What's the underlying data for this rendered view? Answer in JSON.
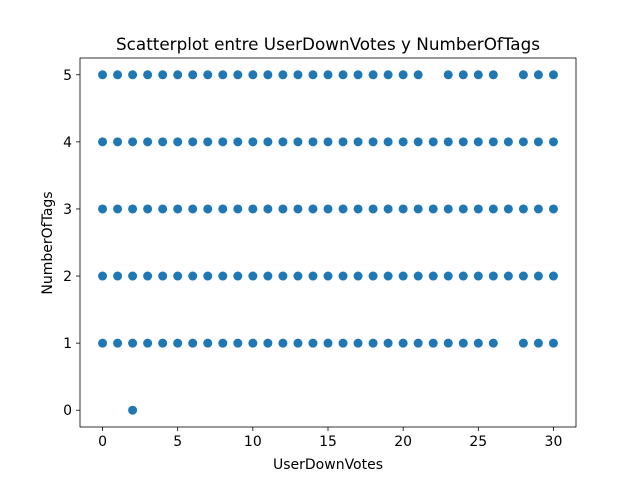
{
  "chart_data": {
    "type": "scatter",
    "title": "Scatterplot entre UserDownVotes y NumberOfTags",
    "xlabel": "UserDownVotes",
    "ylabel": "NumberOfTags",
    "xlim": [
      -1.5,
      31.5
    ],
    "ylim": [
      -0.25,
      5.25
    ],
    "x_ticks": [
      "0",
      "5",
      "10",
      "15",
      "20",
      "25",
      "30"
    ],
    "y_ticks": [
      "0",
      "1",
      "2",
      "3",
      "4",
      "5"
    ],
    "grid": false,
    "legend": "none",
    "marker_color": "#1f77b4",
    "series": [
      {
        "points": [
          [
            2,
            0
          ],
          [
            0,
            1
          ],
          [
            1,
            1
          ],
          [
            2,
            1
          ],
          [
            3,
            1
          ],
          [
            4,
            1
          ],
          [
            5,
            1
          ],
          [
            6,
            1
          ],
          [
            7,
            1
          ],
          [
            8,
            1
          ],
          [
            9,
            1
          ],
          [
            10,
            1
          ],
          [
            11,
            1
          ],
          [
            12,
            1
          ],
          [
            13,
            1
          ],
          [
            14,
            1
          ],
          [
            15,
            1
          ],
          [
            16,
            1
          ],
          [
            17,
            1
          ],
          [
            18,
            1
          ],
          [
            19,
            1
          ],
          [
            20,
            1
          ],
          [
            21,
            1
          ],
          [
            22,
            1
          ],
          [
            23,
            1
          ],
          [
            24,
            1
          ],
          [
            25,
            1
          ],
          [
            26,
            1
          ],
          [
            28,
            1
          ],
          [
            29,
            1
          ],
          [
            30,
            1
          ],
          [
            0,
            2
          ],
          [
            1,
            2
          ],
          [
            2,
            2
          ],
          [
            3,
            2
          ],
          [
            4,
            2
          ],
          [
            5,
            2
          ],
          [
            6,
            2
          ],
          [
            7,
            2
          ],
          [
            8,
            2
          ],
          [
            9,
            2
          ],
          [
            10,
            2
          ],
          [
            11,
            2
          ],
          [
            12,
            2
          ],
          [
            13,
            2
          ],
          [
            14,
            2
          ],
          [
            15,
            2
          ],
          [
            16,
            2
          ],
          [
            17,
            2
          ],
          [
            18,
            2
          ],
          [
            19,
            2
          ],
          [
            20,
            2
          ],
          [
            21,
            2
          ],
          [
            22,
            2
          ],
          [
            23,
            2
          ],
          [
            24,
            2
          ],
          [
            25,
            2
          ],
          [
            26,
            2
          ],
          [
            27,
            2
          ],
          [
            28,
            2
          ],
          [
            29,
            2
          ],
          [
            30,
            2
          ],
          [
            0,
            3
          ],
          [
            1,
            3
          ],
          [
            2,
            3
          ],
          [
            3,
            3
          ],
          [
            4,
            3
          ],
          [
            5,
            3
          ],
          [
            6,
            3
          ],
          [
            7,
            3
          ],
          [
            8,
            3
          ],
          [
            9,
            3
          ],
          [
            10,
            3
          ],
          [
            11,
            3
          ],
          [
            12,
            3
          ],
          [
            13,
            3
          ],
          [
            14,
            3
          ],
          [
            15,
            3
          ],
          [
            16,
            3
          ],
          [
            17,
            3
          ],
          [
            18,
            3
          ],
          [
            19,
            3
          ],
          [
            20,
            3
          ],
          [
            21,
            3
          ],
          [
            22,
            3
          ],
          [
            23,
            3
          ],
          [
            24,
            3
          ],
          [
            25,
            3
          ],
          [
            26,
            3
          ],
          [
            27,
            3
          ],
          [
            28,
            3
          ],
          [
            29,
            3
          ],
          [
            30,
            3
          ],
          [
            0,
            4
          ],
          [
            1,
            4
          ],
          [
            2,
            4
          ],
          [
            3,
            4
          ],
          [
            4,
            4
          ],
          [
            5,
            4
          ],
          [
            6,
            4
          ],
          [
            7,
            4
          ],
          [
            8,
            4
          ],
          [
            9,
            4
          ],
          [
            10,
            4
          ],
          [
            11,
            4
          ],
          [
            12,
            4
          ],
          [
            13,
            4
          ],
          [
            14,
            4
          ],
          [
            15,
            4
          ],
          [
            16,
            4
          ],
          [
            17,
            4
          ],
          [
            18,
            4
          ],
          [
            19,
            4
          ],
          [
            20,
            4
          ],
          [
            21,
            4
          ],
          [
            22,
            4
          ],
          [
            23,
            4
          ],
          [
            24,
            4
          ],
          [
            25,
            4
          ],
          [
            26,
            4
          ],
          [
            27,
            4
          ],
          [
            28,
            4
          ],
          [
            29,
            4
          ],
          [
            30,
            4
          ],
          [
            0,
            5
          ],
          [
            1,
            5
          ],
          [
            2,
            5
          ],
          [
            3,
            5
          ],
          [
            4,
            5
          ],
          [
            5,
            5
          ],
          [
            6,
            5
          ],
          [
            7,
            5
          ],
          [
            8,
            5
          ],
          [
            9,
            5
          ],
          [
            10,
            5
          ],
          [
            11,
            5
          ],
          [
            12,
            5
          ],
          [
            13,
            5
          ],
          [
            14,
            5
          ],
          [
            15,
            5
          ],
          [
            16,
            5
          ],
          [
            17,
            5
          ],
          [
            18,
            5
          ],
          [
            19,
            5
          ],
          [
            20,
            5
          ],
          [
            21,
            5
          ],
          [
            23,
            5
          ],
          [
            24,
            5
          ],
          [
            25,
            5
          ],
          [
            26,
            5
          ],
          [
            28,
            5
          ],
          [
            29,
            5
          ],
          [
            30,
            5
          ]
        ]
      }
    ]
  }
}
